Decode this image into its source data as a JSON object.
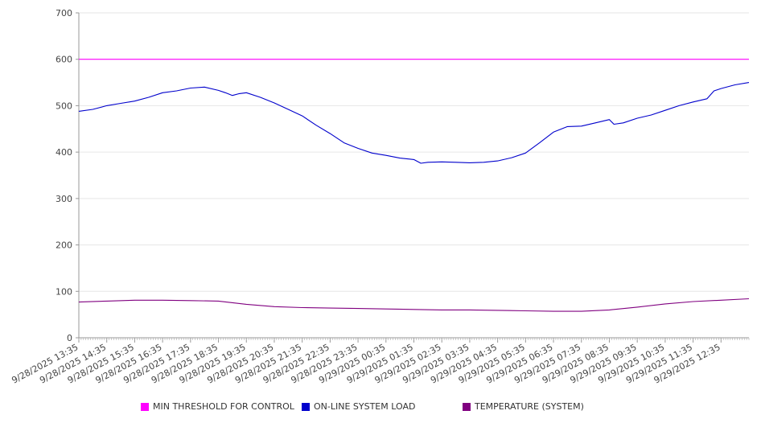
{
  "chart_data": {
    "type": "line",
    "ylim": [
      0,
      700
    ],
    "yticks": [
      0,
      100,
      200,
      300,
      400,
      500,
      600,
      700
    ],
    "x_tick_labels": [
      "9/28/2025 13:35",
      "9/28/2025 14:35",
      "9/28/2025 15:35",
      "9/28/2025 16:35",
      "9/28/2025 17:35",
      "9/28/2025 18:35",
      "9/28/2025 19:35",
      "9/28/2025 20:35",
      "9/28/2025 21:35",
      "9/28/2025 22:35",
      "9/28/2025 23:35",
      "9/29/2025 00:35",
      "9/29/2025 01:35",
      "9/29/2025 02:35",
      "9/29/2025 03:35",
      "9/29/2025 04:35",
      "9/29/2025 05:35",
      "9/29/2025 06:35",
      "9/29/2025 07:35",
      "9/29/2025 08:35",
      "9/29/2025 09:35",
      "9/29/2025 10:35",
      "9/29/2025 11:35",
      "9/29/2025 12:35"
    ],
    "x_start": "9/28/2025 13:35",
    "x_end": "9/29/2025 13:35",
    "grid": "horizontal",
    "legend_position": "bottom",
    "series": [
      {
        "name": "MIN THRESHOLD FOR CONTROL",
        "color": "#ff00ff",
        "x": [
          "9/28/2025 13:35",
          "9/29/2025 13:35"
        ],
        "values": [
          600,
          600
        ]
      },
      {
        "name": "ON-LINE SYSTEM LOAD",
        "color": "#0000cc",
        "x": [
          "9/28/2025 13:35",
          "9/28/2025 14:05",
          "9/28/2025 14:35",
          "9/28/2025 15:05",
          "9/28/2025 15:35",
          "9/28/2025 16:05",
          "9/28/2025 16:35",
          "9/28/2025 17:05",
          "9/28/2025 17:35",
          "9/28/2025 18:05",
          "9/28/2025 18:35",
          "9/28/2025 18:50",
          "9/28/2025 19:05",
          "9/28/2025 19:20",
          "9/28/2025 19:35",
          "9/28/2025 20:05",
          "9/28/2025 20:35",
          "9/28/2025 21:05",
          "9/28/2025 21:35",
          "9/28/2025 22:05",
          "9/28/2025 22:35",
          "9/28/2025 23:05",
          "9/28/2025 23:35",
          "9/29/2025 00:05",
          "9/29/2025 00:35",
          "9/29/2025 01:05",
          "9/29/2025 01:35",
          "9/29/2025 01:50",
          "9/29/2025 02:05",
          "9/29/2025 02:35",
          "9/29/2025 03:05",
          "9/29/2025 03:35",
          "9/29/2025 04:05",
          "9/29/2025 04:35",
          "9/29/2025 05:05",
          "9/29/2025 05:35",
          "9/29/2025 06:05",
          "9/29/2025 06:35",
          "9/29/2025 07:05",
          "9/29/2025 07:35",
          "9/29/2025 08:05",
          "9/29/2025 08:35",
          "9/29/2025 08:45",
          "9/29/2025 09:05",
          "9/29/2025 09:35",
          "9/29/2025 10:05",
          "9/29/2025 10:35",
          "9/29/2025 11:05",
          "9/29/2025 11:35",
          "9/29/2025 12:05",
          "9/29/2025 12:20",
          "9/29/2025 12:35",
          "9/29/2025 13:05",
          "9/29/2025 13:35"
        ],
        "values": [
          488,
          492,
          500,
          505,
          510,
          518,
          528,
          532,
          538,
          540,
          533,
          528,
          522,
          526,
          528,
          518,
          506,
          492,
          478,
          458,
          440,
          420,
          408,
          398,
          393,
          387,
          384,
          376,
          378,
          379,
          378,
          377,
          378,
          381,
          388,
          398,
          420,
          443,
          455,
          456,
          463,
          470,
          460,
          463,
          473,
          480,
          490,
          500,
          508,
          515,
          532,
          537,
          545,
          550
        ]
      },
      {
        "name": "TEMPERATURE (SYSTEM)",
        "color": "#800080",
        "x": [
          "9/28/2025 13:35",
          "9/28/2025 14:35",
          "9/28/2025 15:35",
          "9/28/2025 16:35",
          "9/28/2025 17:35",
          "9/28/2025 18:35",
          "9/28/2025 19:35",
          "9/28/2025 20:35",
          "9/28/2025 21:35",
          "9/28/2025 22:35",
          "9/28/2025 23:35",
          "9/29/2025 00:35",
          "9/29/2025 01:35",
          "9/29/2025 02:35",
          "9/29/2025 03:35",
          "9/29/2025 04:35",
          "9/29/2025 05:35",
          "9/29/2025 06:35",
          "9/29/2025 07:35",
          "9/29/2025 08:35",
          "9/29/2025 09:35",
          "9/29/2025 10:35",
          "9/29/2025 11:35",
          "9/29/2025 12:35",
          "9/29/2025 13:35"
        ],
        "values": [
          77,
          79,
          81,
          81,
          80,
          79,
          72,
          67,
          65,
          64,
          63,
          62,
          61,
          60,
          60,
          59,
          58,
          57,
          57,
          60,
          66,
          73,
          78,
          81,
          84
        ]
      }
    ]
  }
}
